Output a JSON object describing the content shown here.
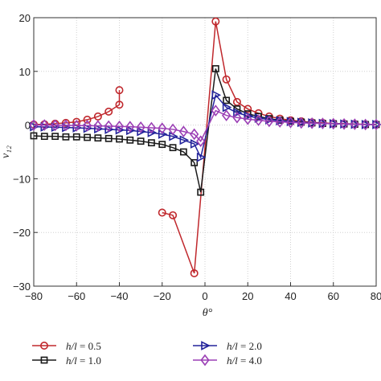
{
  "chart_data": {
    "type": "line",
    "xlabel": "θ°",
    "ylabel": "ν₁₂",
    "xlim": [
      -80,
      80
    ],
    "ylim": [
      -30,
      20
    ],
    "xticks": [
      -80,
      -60,
      -40,
      -20,
      0,
      20,
      40,
      60,
      80
    ],
    "xtick_labels": [
      "−80",
      "−60",
      "−40",
      "−20",
      "0",
      "20",
      "40",
      "60",
      "80"
    ],
    "yticks": [
      -30,
      -20,
      -10,
      0,
      10,
      20
    ],
    "ytick_labels": [
      "−30",
      "−20",
      "−10",
      "0",
      "10",
      "20"
    ],
    "grid": true,
    "legend_position": "bottom",
    "series": [
      {
        "name": "h/l = 0.5",
        "legend_var": "h/l",
        "legend_value": "= 0.5",
        "color": "#c0282d",
        "marker": "circle",
        "segments": [
          [
            [
              -80,
              0.1
            ],
            [
              -75,
              0.15
            ],
            [
              -70,
              0.25
            ],
            [
              -65,
              0.4
            ],
            [
              -60,
              0.6
            ],
            [
              -55,
              1.0
            ],
            [
              -50,
              1.6
            ],
            [
              -45,
              2.5
            ],
            [
              -40,
              3.8
            ],
            [
              -40,
              6.5
            ]
          ],
          [
            [
              -20,
              -16.3
            ],
            [
              -15,
              -16.8
            ],
            [
              -5,
              -27.6
            ],
            [
              5,
              19.3
            ],
            [
              10,
              8.5
            ],
            [
              15,
              4.3
            ],
            [
              20,
              3.0
            ],
            [
              25,
              2.2
            ],
            [
              30,
              1.6
            ],
            [
              35,
              1.2
            ],
            [
              40,
              0.9
            ],
            [
              45,
              0.7
            ],
            [
              50,
              0.5
            ],
            [
              55,
              0.4
            ],
            [
              60,
              0.3
            ],
            [
              65,
              0.25
            ],
            [
              70,
              0.2
            ],
            [
              75,
              0.15
            ],
            [
              80,
              0.1
            ]
          ]
        ]
      },
      {
        "name": "h/l = 1.0",
        "legend_var": "h/l",
        "legend_value": "= 1.0",
        "color": "#1a1a1a",
        "marker": "square",
        "segments": [
          [
            [
              -80,
              -2.0
            ],
            [
              -75,
              -2.1
            ],
            [
              -70,
              -2.1
            ],
            [
              -65,
              -2.2
            ],
            [
              -60,
              -2.2
            ],
            [
              -55,
              -2.3
            ],
            [
              -50,
              -2.4
            ],
            [
              -45,
              -2.5
            ],
            [
              -40,
              -2.6
            ],
            [
              -35,
              -2.8
            ],
            [
              -30,
              -3.0
            ],
            [
              -25,
              -3.3
            ],
            [
              -20,
              -3.6
            ],
            [
              -15,
              -4.2
            ],
            [
              -10,
              -5.0
            ],
            [
              -5,
              -7.0
            ],
            [
              -2,
              -12.5
            ],
            [
              5,
              10.5
            ],
            [
              10,
              4.6
            ],
            [
              15,
              3.0
            ],
            [
              20,
              2.1
            ],
            [
              25,
              1.6
            ],
            [
              30,
              1.2
            ],
            [
              35,
              0.9
            ],
            [
              40,
              0.7
            ],
            [
              45,
              0.55
            ],
            [
              50,
              0.4
            ],
            [
              55,
              0.3
            ],
            [
              60,
              0.25
            ],
            [
              65,
              0.2
            ],
            [
              70,
              0.15
            ],
            [
              75,
              0.1
            ],
            [
              80,
              0.1
            ]
          ]
        ]
      },
      {
        "name": "h/l = 2.0",
        "legend_var": "h/l",
        "legend_value": "= 2.0",
        "color": "#23239b",
        "marker": "triangle-right",
        "segments": [
          [
            [
              -80,
              -0.3
            ],
            [
              -75,
              -0.35
            ],
            [
              -70,
              -0.4
            ],
            [
              -65,
              -0.45
            ],
            [
              -60,
              -0.5
            ],
            [
              -55,
              -0.6
            ],
            [
              -50,
              -0.7
            ],
            [
              -45,
              -0.8
            ],
            [
              -40,
              -0.9
            ],
            [
              -35,
              -1.0
            ],
            [
              -30,
              -1.2
            ],
            [
              -25,
              -1.4
            ],
            [
              -20,
              -1.7
            ],
            [
              -15,
              -2.1
            ],
            [
              -10,
              -2.8
            ],
            [
              -5,
              -3.5
            ],
            [
              -2,
              -6.0
            ],
            [
              5,
              5.6
            ],
            [
              10,
              3.3
            ],
            [
              15,
              2.3
            ],
            [
              20,
              1.7
            ],
            [
              25,
              1.3
            ],
            [
              30,
              1.0
            ],
            [
              35,
              0.8
            ],
            [
              40,
              0.65
            ],
            [
              45,
              0.5
            ],
            [
              50,
              0.4
            ],
            [
              55,
              0.3
            ],
            [
              60,
              0.25
            ],
            [
              65,
              0.2
            ],
            [
              70,
              0.15
            ],
            [
              75,
              0.1
            ],
            [
              80,
              0.1
            ]
          ]
        ]
      },
      {
        "name": "h/l = 4.0",
        "legend_var": "h/l",
        "legend_value": "= 4.0",
        "color": "#9b3fb5",
        "marker": "diamond",
        "segments": [
          [
            [
              -80,
              0.0
            ],
            [
              -75,
              0.0
            ],
            [
              -70,
              -0.05
            ],
            [
              -65,
              -0.05
            ],
            [
              -60,
              -0.1
            ],
            [
              -55,
              -0.1
            ],
            [
              -50,
              -0.15
            ],
            [
              -45,
              -0.2
            ],
            [
              -40,
              -0.25
            ],
            [
              -35,
              -0.3
            ],
            [
              -30,
              -0.4
            ],
            [
              -25,
              -0.5
            ],
            [
              -20,
              -0.6
            ],
            [
              -15,
              -0.8
            ],
            [
              -10,
              -1.2
            ],
            [
              -5,
              -1.7
            ],
            [
              -2,
              -3.0
            ],
            [
              5,
              2.7
            ],
            [
              10,
              1.8
            ],
            [
              15,
              1.4
            ],
            [
              20,
              1.1
            ],
            [
              25,
              0.9
            ],
            [
              30,
              0.7
            ],
            [
              35,
              0.6
            ],
            [
              40,
              0.5
            ],
            [
              45,
              0.4
            ],
            [
              50,
              0.35
            ],
            [
              55,
              0.3
            ],
            [
              60,
              0.25
            ],
            [
              65,
              0.2
            ],
            [
              70,
              0.15
            ],
            [
              75,
              0.1
            ],
            [
              80,
              0.1
            ]
          ]
        ]
      }
    ]
  }
}
